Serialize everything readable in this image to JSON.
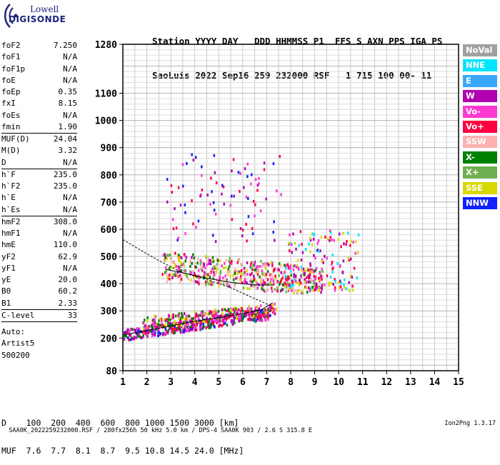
{
  "logo": {
    "line1": "Lowell",
    "line2": "DIGISONDE"
  },
  "header": {
    "row1": "Station YYYY DAY   DDD HHMMSS P1  FFS S AXN PPS IGA PS",
    "row2": "SaoLuis 2022 Sep16 259 232000 RSF   1 715 100 00- 11"
  },
  "params": [
    {
      "name": "foF2",
      "value": "7.250"
    },
    {
      "name": "foF1",
      "value": "N/A"
    },
    {
      "name": "foF1p",
      "value": "N/A"
    },
    {
      "name": "foE",
      "value": "N/A"
    },
    {
      "name": "foEp",
      "value": "0.35"
    },
    {
      "name": "fxI",
      "value": "8.15"
    },
    {
      "name": "foEs",
      "value": "N/A"
    },
    {
      "name": "fmin",
      "value": "1.90",
      "sep": true
    },
    {
      "name": "MUF(D)",
      "value": "24.04"
    },
    {
      "name": "M(D)",
      "value": "3.32"
    },
    {
      "name": "D",
      "value": "N/A",
      "sep": true
    },
    {
      "name": "h`F",
      "value": "235.0"
    },
    {
      "name": "h`F2",
      "value": "235.0"
    },
    {
      "name": "h`E",
      "value": "N/A"
    },
    {
      "name": "h`Es",
      "value": "N/A",
      "sep": true
    },
    {
      "name": "hmF2",
      "value": "308.0"
    },
    {
      "name": "hmF1",
      "value": "N/A"
    },
    {
      "name": "hmE",
      "value": "110.0"
    },
    {
      "name": "yF2",
      "value": "62.9"
    },
    {
      "name": "yF1",
      "value": "N/A"
    },
    {
      "name": "yE",
      "value": "20.0"
    },
    {
      "name": "B0",
      "value": "60.2"
    },
    {
      "name": "B1",
      "value": "2.33",
      "sep": true
    },
    {
      "name": "C-level",
      "value": "33",
      "sep": true
    }
  ],
  "autoscaling": {
    "line1": "Auto:",
    "line2": "Artist5",
    "line3": "500200"
  },
  "legend": [
    {
      "label": "NoVal",
      "color": "#a0a0a0"
    },
    {
      "label": "NNE",
      "color": "#00e5ff"
    },
    {
      "label": "E",
      "color": "#3aa8ff"
    },
    {
      "label": "W",
      "color": "#b000b0"
    },
    {
      "label": "Vo-",
      "color": "#ff38d0"
    },
    {
      "label": "Vo+",
      "color": "#ff0040"
    },
    {
      "label": "SSW",
      "color": "#ffb0b0"
    },
    {
      "label": "X-",
      "color": "#008000"
    },
    {
      "label": "X+",
      "color": "#70b050"
    },
    {
      "label": "SSE",
      "color": "#d8d800"
    },
    {
      "label": "NNW",
      "color": "#1020ff"
    }
  ],
  "muf_table": {
    "row1": "D    100  200  400  600  800 1000 1500 3000 [km]",
    "row2": "MUF  7.6  7.7  8.1  8.7  9.5 10.8 14.5 24.0 [MHz]"
  },
  "footer": {
    "left": "SAA0K_2022259232000.RSF / 280fx256h 50 kHz 5.0 km / DPS-4 SAA0K 903 / 2.6 S 315.8 E",
    "right": "Ion2Png 1.3.17"
  },
  "chart_data": {
    "type": "scatter",
    "title": "",
    "xlabel": "",
    "ylabel": "",
    "xlim": [
      1,
      15
    ],
    "ylim": [
      80,
      1280
    ],
    "xticks": [
      "1",
      "2",
      "3",
      "4",
      "5",
      "6",
      "7",
      "8",
      "9",
      "10",
      "11",
      "12",
      "13",
      "14",
      "15"
    ],
    "yticks": [
      {
        "value": 80,
        "label": "80"
      },
      {
        "value": 200,
        "label": "200"
      },
      {
        "value": 300,
        "label": "300"
      },
      {
        "value": 400,
        "label": "400"
      },
      {
        "value": 500,
        "label": "500"
      },
      {
        "value": 600,
        "label": "600"
      },
      {
        "value": 700,
        "label": "700"
      },
      {
        "value": 800,
        "label": "800"
      },
      {
        "value": 900,
        "label": "900"
      },
      {
        "value": 1000,
        "label": "1000"
      },
      {
        "value": 1100,
        "label": "1100"
      },
      {
        "value": 1280,
        "label": "1280"
      }
    ],
    "grid": true,
    "clusters": [
      {
        "name": "o-trace F2",
        "x": [
          1.0,
          7.2
        ],
        "y": [
          210,
          300
        ],
        "colors": [
          "#ff0040",
          "#b000b0",
          "#1020ff",
          "#ff38d0",
          "#008000"
        ],
        "n": 420
      },
      {
        "name": "x-trace F2",
        "x": [
          1.8,
          7.4
        ],
        "y": [
          255,
          330
        ],
        "colors": [
          "#ff0040",
          "#ff38d0",
          "#b000b0",
          "#008000",
          "#d8d800"
        ],
        "n": 260
      },
      {
        "name": "2nd hop",
        "x": [
          2.6,
          9.3
        ],
        "y": [
          390,
          560
        ],
        "colors": [
          "#d8d800",
          "#008000",
          "#70b050",
          "#ff38d0",
          "#b000b0",
          "#ff0040",
          "#ffb0b0"
        ],
        "n": 520
      },
      {
        "name": "spread",
        "x": [
          2.7,
          7.6
        ],
        "y": [
          560,
          880
        ],
        "colors": [
          "#b000b0",
          "#ff38d0",
          "#ff0040",
          "#1020ff"
        ],
        "n": 90
      },
      {
        "name": "far spread",
        "x": [
          7.6,
          10.8
        ],
        "y": [
          380,
          600
        ],
        "colors": [
          "#ff0040",
          "#ff38d0",
          "#b000b0",
          "#00e5ff",
          "#d8d800"
        ],
        "n": 150
      }
    ],
    "profile_curves": [
      {
        "name": "o-trace fit",
        "points": [
          [
            1.05,
            212
          ],
          [
            2.0,
            228
          ],
          [
            3.0,
            245
          ],
          [
            4.0,
            262
          ],
          [
            5.0,
            275
          ],
          [
            6.0,
            290
          ],
          [
            6.8,
            305
          ],
          [
            7.25,
            330
          ]
        ]
      },
      {
        "name": "x-trace fit",
        "points": [
          [
            1.0,
            562
          ],
          [
            1.8,
            520
          ],
          [
            2.6,
            480
          ],
          [
            3.5,
            440
          ],
          [
            4.5,
            415
          ],
          [
            5.5,
            385
          ],
          [
            6.5,
            345
          ],
          [
            7.2,
            318
          ]
        ]
      },
      {
        "name": "2nd-hop fit",
        "points": [
          [
            2.8,
            452
          ],
          [
            3.5,
            440
          ],
          [
            4.5,
            420
          ],
          [
            5.5,
            405
          ],
          [
            6.5,
            395
          ],
          [
            7.3,
            395
          ]
        ]
      }
    ]
  }
}
